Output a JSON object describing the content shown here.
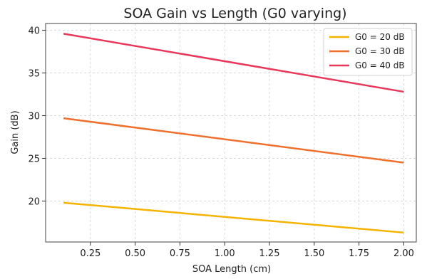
{
  "chart_data": {
    "type": "line",
    "title": "SOA Gain vs Length (G0 varying)",
    "xlabel": "SOA Length (cm)",
    "ylabel": "Gain (dB)",
    "xlim": [
      0,
      2.07
    ],
    "ylim": [
      15.2,
      40.8
    ],
    "xticks": [
      0.25,
      0.5,
      0.75,
      1.0,
      1.25,
      1.5,
      1.75,
      2.0
    ],
    "xtick_labels": [
      "0.25",
      "0.50",
      "0.75",
      "1.00",
      "1.25",
      "1.50",
      "1.75",
      "2.00"
    ],
    "yticks": [
      20,
      25,
      30,
      35,
      40
    ],
    "ytick_labels": [
      "20",
      "25",
      "30",
      "35",
      "40"
    ],
    "grid": true,
    "legend_position": "top-right",
    "series": [
      {
        "name": "G0 = 20 dB",
        "color": "#f5b300",
        "x": [
          0.1,
          2.0
        ],
        "y": [
          19.8,
          16.3
        ]
      },
      {
        "name": "G0 = 30 dB",
        "color": "#ef6f2c",
        "x": [
          0.1,
          2.0
        ],
        "y": [
          29.7,
          24.5
        ]
      },
      {
        "name": "G0 = 40 dB",
        "color": "#e8385c",
        "x": [
          0.1,
          2.0
        ],
        "y": [
          39.6,
          32.8
        ]
      }
    ]
  }
}
